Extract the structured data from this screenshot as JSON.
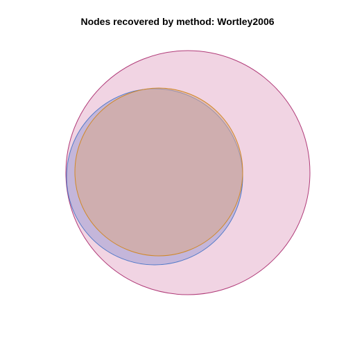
{
  "diagram": {
    "title": "Nodes recovered by method: Wortley2006",
    "sets": [
      {
        "fill": "#d37aa8",
        "stroke": "#b03a78",
        "fill_opacity": 0.32
      },
      {
        "fill": "#8e92cf",
        "stroke": "#4f78c8",
        "fill_opacity": 0.45
      },
      {
        "fill": "#d8a88c",
        "stroke": "#d08828",
        "fill_opacity": 0.55
      }
    ]
  }
}
